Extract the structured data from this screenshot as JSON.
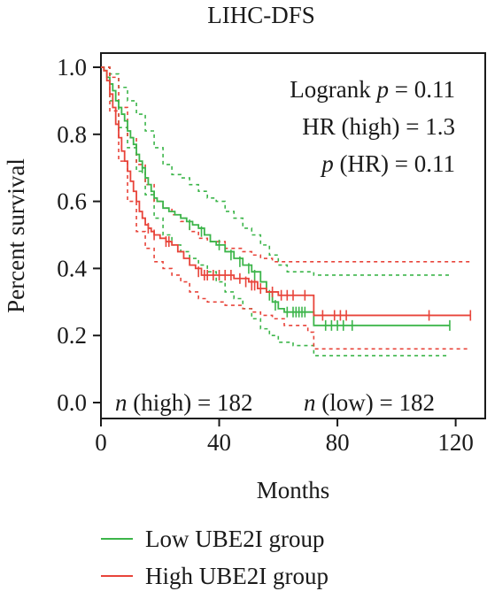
{
  "chart_data": {
    "type": "line",
    "title": "LIHC-DFS",
    "xlabel": "Months",
    "ylabel": "Percent survival",
    "xlim": [
      0,
      130
    ],
    "ylim": [
      0,
      1.05
    ],
    "xticks": [
      0,
      40,
      80,
      120
    ],
    "yticks": [
      0.0,
      0.2,
      0.4,
      0.6,
      0.8,
      1.0
    ],
    "ytick_labels": [
      "0.0",
      "0.2",
      "0.4",
      "0.6",
      "0.8",
      "1.0"
    ],
    "annotations": {
      "logrank": "Logrank p = 0.11",
      "hr": "HR (high) = 1.3",
      "p_hr": "p (HR) = 0.11",
      "n_high": "n (high) = 182",
      "n_low": "n (low) = 182"
    },
    "legend": [
      {
        "label": "Low UBE2I group",
        "color": "#3cb54a"
      },
      {
        "label": "High UBE2I group",
        "color": "#e8443a"
      }
    ],
    "series": [
      {
        "name": "Low UBE2I group",
        "color": "#3cb54a",
        "steps": [
          [
            0,
            1.0
          ],
          [
            1,
            0.99
          ],
          [
            2,
            0.97
          ],
          [
            3,
            0.95
          ],
          [
            4,
            0.93
          ],
          [
            5,
            0.9
          ],
          [
            6,
            0.88
          ],
          [
            7,
            0.86
          ],
          [
            8,
            0.84
          ],
          [
            9,
            0.81
          ],
          [
            10,
            0.79
          ],
          [
            11,
            0.77
          ],
          [
            12,
            0.74
          ],
          [
            13,
            0.72
          ],
          [
            14,
            0.7
          ],
          [
            15,
            0.67
          ],
          [
            16,
            0.65
          ],
          [
            17,
            0.63
          ],
          [
            18,
            0.61
          ],
          [
            19,
            0.6
          ],
          [
            21,
            0.58
          ],
          [
            23,
            0.57
          ],
          [
            25,
            0.56
          ],
          [
            27,
            0.55
          ],
          [
            29,
            0.54
          ],
          [
            31,
            0.53
          ],
          [
            33,
            0.52
          ],
          [
            35,
            0.5
          ],
          [
            37,
            0.48
          ],
          [
            39,
            0.47
          ],
          [
            42,
            0.45
          ],
          [
            45,
            0.43
          ],
          [
            48,
            0.41
          ],
          [
            51,
            0.39
          ],
          [
            54,
            0.36
          ],
          [
            56,
            0.33
          ],
          [
            58,
            0.3
          ],
          [
            60,
            0.28
          ],
          [
            62,
            0.27
          ],
          [
            72,
            0.23
          ],
          [
            118,
            0.23
          ]
        ],
        "censored": [
          [
            14,
            0.7
          ],
          [
            30,
            0.53
          ],
          [
            34,
            0.51
          ],
          [
            40,
            0.47
          ],
          [
            44,
            0.44
          ],
          [
            47,
            0.42
          ],
          [
            50,
            0.4
          ],
          [
            52,
            0.38
          ],
          [
            57,
            0.32
          ],
          [
            59,
            0.29
          ],
          [
            63,
            0.27
          ],
          [
            65,
            0.27
          ],
          [
            66,
            0.27
          ],
          [
            67,
            0.27
          ],
          [
            68,
            0.27
          ],
          [
            69,
            0.27
          ],
          [
            76,
            0.23
          ],
          [
            78,
            0.23
          ],
          [
            80,
            0.23
          ],
          [
            82,
            0.23
          ],
          [
            85,
            0.23
          ],
          [
            118,
            0.23
          ]
        ],
        "ci_upper": [
          [
            0,
            1.0
          ],
          [
            3,
            0.98
          ],
          [
            6,
            0.94
          ],
          [
            9,
            0.9
          ],
          [
            12,
            0.86
          ],
          [
            15,
            0.81
          ],
          [
            18,
            0.76
          ],
          [
            21,
            0.71
          ],
          [
            24,
            0.68
          ],
          [
            27,
            0.67
          ],
          [
            30,
            0.65
          ],
          [
            33,
            0.63
          ],
          [
            36,
            0.61
          ],
          [
            39,
            0.6
          ],
          [
            42,
            0.57
          ],
          [
            45,
            0.55
          ],
          [
            48,
            0.52
          ],
          [
            51,
            0.5
          ],
          [
            54,
            0.47
          ],
          [
            57,
            0.44
          ],
          [
            60,
            0.41
          ],
          [
            63,
            0.39
          ],
          [
            72,
            0.38
          ],
          [
            90,
            0.38
          ],
          [
            118,
            0.38
          ]
        ],
        "ci_lower": [
          [
            0,
            1.0
          ],
          [
            3,
            0.9
          ],
          [
            6,
            0.82
          ],
          [
            9,
            0.76
          ],
          [
            12,
            0.69
          ],
          [
            15,
            0.62
          ],
          [
            18,
            0.55
          ],
          [
            21,
            0.5
          ],
          [
            24,
            0.47
          ],
          [
            27,
            0.45
          ],
          [
            30,
            0.43
          ],
          [
            33,
            0.41
          ],
          [
            36,
            0.39
          ],
          [
            39,
            0.36
          ],
          [
            42,
            0.33
          ],
          [
            45,
            0.31
          ],
          [
            48,
            0.28
          ],
          [
            51,
            0.25
          ],
          [
            54,
            0.22
          ],
          [
            57,
            0.2
          ],
          [
            60,
            0.18
          ],
          [
            65,
            0.17
          ],
          [
            72,
            0.14
          ],
          [
            118,
            0.14
          ]
        ]
      },
      {
        "name": "High UBE2I group",
        "color": "#e8443a",
        "steps": [
          [
            0,
            1.0
          ],
          [
            1,
            0.99
          ],
          [
            2,
            0.96
          ],
          [
            3,
            0.92
          ],
          [
            4,
            0.88
          ],
          [
            5,
            0.83
          ],
          [
            6,
            0.79
          ],
          [
            7,
            0.75
          ],
          [
            8,
            0.72
          ],
          [
            9,
            0.69
          ],
          [
            10,
            0.66
          ],
          [
            11,
            0.63
          ],
          [
            12,
            0.6
          ],
          [
            13,
            0.57
          ],
          [
            14,
            0.55
          ],
          [
            15,
            0.53
          ],
          [
            16,
            0.52
          ],
          [
            17,
            0.51
          ],
          [
            18,
            0.5
          ],
          [
            20,
            0.49
          ],
          [
            22,
            0.48
          ],
          [
            24,
            0.47
          ],
          [
            26,
            0.45
          ],
          [
            28,
            0.43
          ],
          [
            30,
            0.41
          ],
          [
            32,
            0.4
          ],
          [
            34,
            0.38
          ],
          [
            45,
            0.37
          ],
          [
            50,
            0.36
          ],
          [
            53,
            0.34
          ],
          [
            56,
            0.33
          ],
          [
            60,
            0.32
          ],
          [
            68,
            0.32
          ],
          [
            72,
            0.26
          ],
          [
            125,
            0.26
          ]
        ],
        "censored": [
          [
            16,
            0.52
          ],
          [
            18,
            0.5
          ],
          [
            22,
            0.48
          ],
          [
            23,
            0.48
          ],
          [
            33,
            0.39
          ],
          [
            35,
            0.38
          ],
          [
            36,
            0.38
          ],
          [
            38,
            0.38
          ],
          [
            40,
            0.38
          ],
          [
            42,
            0.38
          ],
          [
            44,
            0.38
          ],
          [
            47,
            0.37
          ],
          [
            49,
            0.36
          ],
          [
            51,
            0.35
          ],
          [
            52,
            0.35
          ],
          [
            54,
            0.34
          ],
          [
            58,
            0.33
          ],
          [
            61,
            0.32
          ],
          [
            63,
            0.32
          ],
          [
            65,
            0.32
          ],
          [
            69,
            0.32
          ],
          [
            75,
            0.26
          ],
          [
            79,
            0.26
          ],
          [
            81,
            0.26
          ],
          [
            83,
            0.26
          ],
          [
            111,
            0.26
          ],
          [
            125,
            0.26
          ]
        ],
        "ci_upper": [
          [
            0,
            1.0
          ],
          [
            3,
            0.97
          ],
          [
            6,
            0.88
          ],
          [
            9,
            0.79
          ],
          [
            12,
            0.71
          ],
          [
            15,
            0.65
          ],
          [
            18,
            0.6
          ],
          [
            21,
            0.58
          ],
          [
            24,
            0.56
          ],
          [
            27,
            0.54
          ],
          [
            30,
            0.51
          ],
          [
            33,
            0.49
          ],
          [
            36,
            0.48
          ],
          [
            42,
            0.46
          ],
          [
            48,
            0.45
          ],
          [
            51,
            0.44
          ],
          [
            54,
            0.43
          ],
          [
            58,
            0.42
          ],
          [
            62,
            0.42
          ],
          [
            72,
            0.42
          ],
          [
            125,
            0.42
          ]
        ],
        "ci_lower": [
          [
            0,
            1.0
          ],
          [
            3,
            0.87
          ],
          [
            6,
            0.72
          ],
          [
            9,
            0.6
          ],
          [
            12,
            0.51
          ],
          [
            15,
            0.46
          ],
          [
            18,
            0.42
          ],
          [
            21,
            0.4
          ],
          [
            24,
            0.38
          ],
          [
            27,
            0.36
          ],
          [
            30,
            0.33
          ],
          [
            33,
            0.31
          ],
          [
            36,
            0.3
          ],
          [
            42,
            0.29
          ],
          [
            48,
            0.28
          ],
          [
            51,
            0.27
          ],
          [
            54,
            0.26
          ],
          [
            58,
            0.25
          ],
          [
            62,
            0.23
          ],
          [
            70,
            0.21
          ],
          [
            72,
            0.16
          ],
          [
            125,
            0.16
          ]
        ]
      }
    ]
  }
}
